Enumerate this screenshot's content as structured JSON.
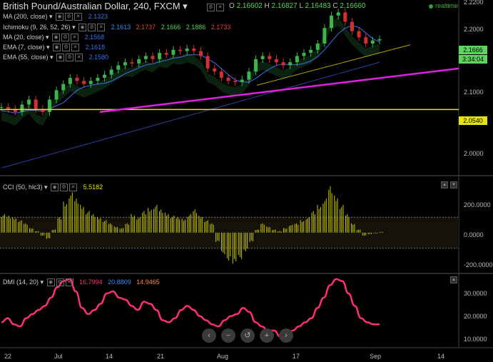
{
  "header": {
    "title": "British Pound/Australian Dollar, 240, FXCM",
    "ohlc": {
      "o_label": "O",
      "o": "2.16602",
      "h_label": "H",
      "h": "2.16827",
      "l_label": "L",
      "l": "2.16483",
      "c_label": "C",
      "c": "2.16660"
    },
    "realtime": "realtime"
  },
  "indicators": [
    {
      "name": "MA (200, close)",
      "values": [
        "2.1323"
      ],
      "colors": [
        "#3b6ff0"
      ]
    },
    {
      "name": "Ichimoku (9, 26, 52, 26)",
      "values": [
        "2.1613",
        "2.1737",
        "2.1666",
        "2.1886",
        "2.1733"
      ],
      "colors": [
        "#3b8ef0",
        "#e0453a",
        "#5fd35f",
        "#5fd35f",
        "#e0453a"
      ]
    },
    {
      "name": "MA (20, close)",
      "values": [
        "2.1568"
      ],
      "colors": [
        "#3b6ff0"
      ]
    },
    {
      "name": "EMA (7, close)",
      "values": [
        "2.1618"
      ],
      "colors": [
        "#3b6ff0"
      ]
    },
    {
      "name": "EMA (55, close)",
      "values": [
        "2.1580"
      ],
      "colors": [
        "#3b6ff0"
      ]
    }
  ],
  "price_tags": {
    "last": "2.1666",
    "countdown": "3:34:04",
    "support": "2.0540"
  },
  "cci_panel": {
    "label": "CCI (50, hlc3)",
    "value": "5.5182",
    "ticks": [
      "200.0000",
      "0.0000",
      "-200.0000"
    ]
  },
  "dmi_panel": {
    "label": "DMI (14, 20)",
    "values": [
      "16.7994",
      "20.8809",
      "14.9465"
    ],
    "colors": [
      "#ff2d7a",
      "#3b8ef0",
      "#ff8a3a"
    ],
    "ticks": [
      "30.0000",
      "20.0000",
      "10.0000"
    ]
  },
  "nav": [
    "‹",
    "−",
    "↺",
    "+",
    "›"
  ],
  "colors": {
    "up": "#3cb44b",
    "down": "#d03030",
    "cci": "#c9c900",
    "dmi": "#ff2d7a",
    "trend": "#e020e0",
    "support": "#e6e600",
    "channel": "#b8a800",
    "ma": "#2c3ea0"
  },
  "chart_data": [
    {
      "type": "line",
      "title": "British Pound/Australian Dollar, 240, FXCM",
      "x_ticks": [
        "22",
        "Jul",
        "14",
        "21",
        "Aug",
        "17",
        "Sep",
        "14"
      ],
      "y_ticks": [
        "2.2200",
        "2.2000",
        "2.1000",
        "2.0000"
      ],
      "ylim": [
        1.95,
        2.23
      ],
      "series": [
        {
          "values": [
            2.058,
            2.055,
            2.05,
            2.062,
            2.07,
            2.055,
            2.05,
            2.07,
            2.085,
            2.095,
            2.105,
            2.1,
            2.095,
            2.1,
            2.105,
            2.11,
            2.118,
            2.125,
            2.13,
            2.128,
            2.135,
            2.14,
            2.135,
            2.145,
            2.142,
            2.15,
            2.148,
            2.152,
            2.148,
            2.14,
            2.12,
            2.115,
            2.105,
            2.1,
            2.098,
            2.102,
            2.115,
            2.135,
            2.14,
            2.135,
            2.13,
            2.125,
            2.13,
            2.14,
            2.145,
            2.15,
            2.16,
            2.185,
            2.205,
            2.21,
            2.195,
            2.18,
            2.17,
            2.16,
            2.165,
            2.167
          ]
        }
      ],
      "overlays": [
        {
          "type": "horizontal-line",
          "value": 2.054
        },
        {
          "type": "trendline",
          "from": 2.05,
          "to": 2.12
        }
      ]
    },
    {
      "type": "bar",
      "ticks": [
        "200.0000",
        "0.0000",
        "-200.0000"
      ],
      "ylim": [
        -250,
        350
      ],
      "values": [
        120,
        110,
        100,
        80,
        60,
        30,
        10,
        -20,
        -40,
        20,
        100,
        200,
        260,
        220,
        180,
        140,
        120,
        100,
        80,
        60,
        40,
        30,
        60,
        120,
        100,
        140,
        160,
        180,
        150,
        130,
        110,
        100,
        90,
        120,
        150,
        110,
        80,
        60,
        -60,
        -140,
        -180,
        -200,
        -170,
        -120,
        -60,
        20,
        60,
        40,
        20,
        10,
        30,
        50,
        60,
        80,
        100,
        140,
        180,
        220,
        300,
        240,
        180,
        120,
        60,
        20,
        -20,
        -10,
        -5,
        5
      ]
    },
    {
      "type": "line",
      "ticks": [
        "30.0000",
        "20.0000",
        "10.0000"
      ],
      "ylim": [
        6,
        40
      ],
      "series": [
        {
          "values": [
            18,
            20,
            17,
            16,
            20,
            22,
            24,
            26,
            30,
            35,
            38,
            39,
            33,
            25,
            22,
            24,
            27,
            32,
            33,
            30,
            29,
            26,
            24,
            28,
            27,
            24,
            19,
            18,
            20,
            24,
            26,
            24,
            21,
            19,
            17,
            16,
            19,
            21,
            22,
            25,
            23,
            18,
            16,
            14,
            14,
            11,
            12,
            14,
            16,
            18,
            20,
            25,
            30,
            36,
            39,
            38,
            32,
            26,
            20,
            18,
            17,
            17
          ]
        }
      ]
    }
  ]
}
